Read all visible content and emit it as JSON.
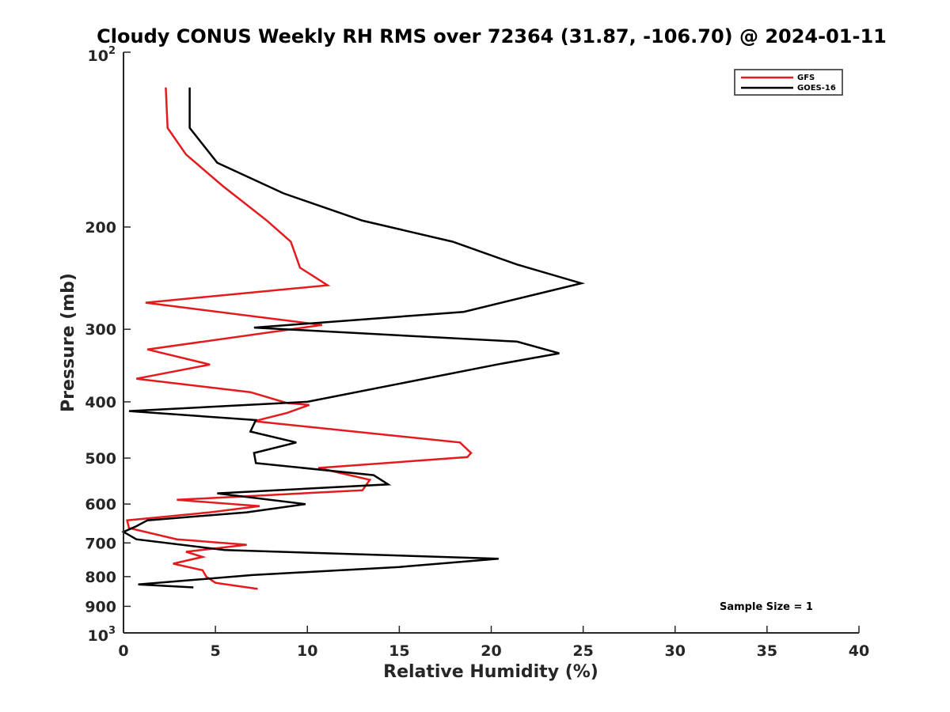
{
  "chart_data": {
    "type": "line",
    "title": "Cloudy CONUS Weekly RH RMS over 72364 (31.87, -106.70) @ 2024-01-11",
    "xlabel": "Relative Humidity (%)",
    "ylabel": "Pressure (mb)",
    "xlim": [
      0,
      40
    ],
    "ylim": [
      100,
      1000
    ],
    "yscale": "log",
    "yreversed": true,
    "grid": false,
    "legend_position": "top-right",
    "x_ticks": [
      "0",
      "5",
      "10",
      "15",
      "20",
      "25",
      "30",
      "35",
      "40"
    ],
    "y_ticks": [
      {
        "value": 200,
        "label": "200"
      },
      {
        "value": 300,
        "label": "300"
      },
      {
        "value": 400,
        "label": "400"
      },
      {
        "value": 500,
        "label": "500"
      },
      {
        "value": 600,
        "label": "600"
      },
      {
        "value": 700,
        "label": "700"
      },
      {
        "value": 800,
        "label": "800"
      },
      {
        "value": 900,
        "label": "900"
      }
    ],
    "y_end_labels": {
      "top_base": "10",
      "top_exp": "2",
      "bottom_base": "10",
      "bottom_exp": "3"
    },
    "series": [
      {
        "name": "GFS",
        "color": "#e41a1c",
        "x": [
          2.3,
          2.4,
          3.4,
          5.4,
          7.8,
          9.1,
          9.6,
          11.1,
          1.2,
          10.8,
          1.3,
          4.7,
          0.7,
          6.9,
          8.9,
          10.1,
          8.9,
          7.1,
          18.3,
          18.9,
          18.7,
          10.6,
          13.4,
          13.0,
          2.9,
          7.4,
          4.7,
          0.2,
          0.3,
          2.9,
          6.7,
          3.4,
          4.3,
          2.7,
          4.3,
          4.5,
          5.0,
          7.3
        ],
        "y": [
          115,
          135,
          150,
          170,
          195,
          212,
          235,
          252,
          270,
          295,
          325,
          345,
          365,
          385,
          402,
          405,
          418,
          432,
          470,
          490,
          498,
          520,
          545,
          568,
          590,
          605,
          620,
          640,
          660,
          690,
          705,
          725,
          740,
          760,
          780,
          800,
          820,
          840
        ]
      },
      {
        "name": "GOES-16",
        "color": "#000000",
        "x": [
          3.6,
          3.6,
          5.1,
          8.7,
          13.0,
          17.9,
          21.4,
          24.9,
          18.5,
          7.1,
          21.4,
          23.7,
          20.3,
          10.0,
          0.3,
          7.2,
          6.9,
          9.4,
          7.1,
          7.2,
          13.6,
          14.4,
          5.1,
          9.9,
          6.7,
          1.3,
          0.7,
          0.0,
          0.7,
          5.5,
          20.4,
          15.0,
          7.0,
          0.8,
          3.8
        ],
        "y": [
          115,
          135,
          155,
          175,
          195,
          212,
          232,
          250,
          280,
          298,
          315,
          330,
          345,
          400,
          415,
          430,
          450,
          470,
          490,
          510,
          535,
          555,
          575,
          600,
          620,
          640,
          655,
          670,
          690,
          720,
          745,
          770,
          795,
          825,
          835
        ]
      }
    ],
    "annotations": [
      "Sample Size = 1"
    ]
  }
}
